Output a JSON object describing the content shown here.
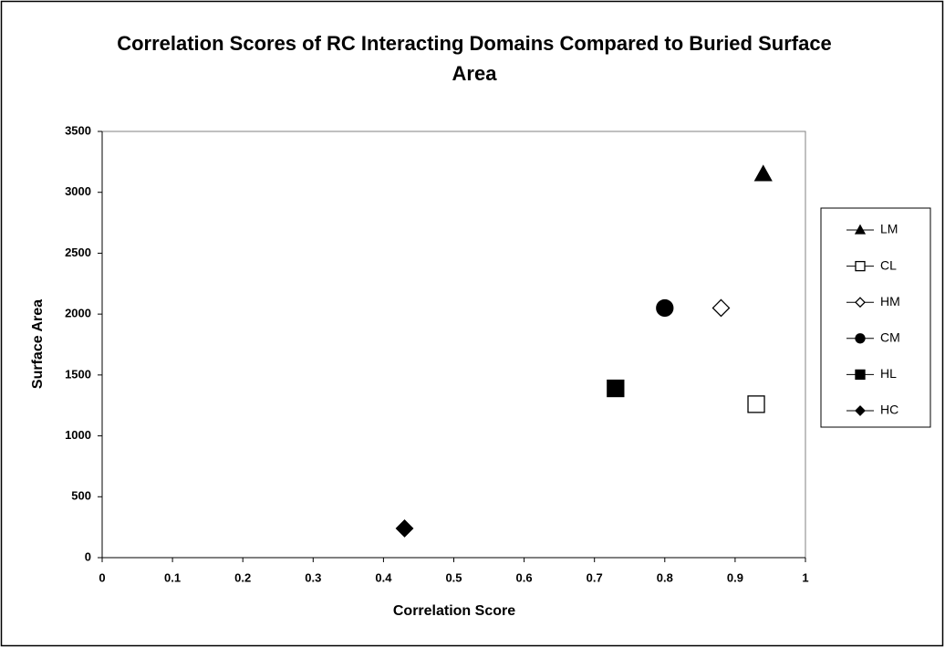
{
  "chart_data": {
    "type": "scatter",
    "title": "Correlation Scores of RC Interacting Domains Compared to Buried Surface Area",
    "x_label": "Correlation Score",
    "y_label": "Surface Area",
    "xlim": [
      0,
      1
    ],
    "xticks": [
      0,
      0.1,
      0.2,
      0.3,
      0.4,
      0.5,
      0.6,
      0.7,
      0.8,
      0.9,
      1
    ],
    "ylim": [
      0,
      3500
    ],
    "yticks": [
      0,
      500,
      1000,
      1500,
      2000,
      2500,
      3000,
      3500
    ],
    "grid": false,
    "legend": "right",
    "series": [
      {
        "name": "LM",
        "color": "#000000",
        "marker": "triangle",
        "filled": true,
        "x": [
          0.94
        ],
        "y": [
          3150
        ]
      },
      {
        "name": "CL",
        "color": "#000000",
        "marker": "square",
        "filled": false,
        "x": [
          0.93
        ],
        "y": [
          1260
        ]
      },
      {
        "name": "HM",
        "color": "#000000",
        "marker": "diamond",
        "filled": false,
        "x": [
          0.88
        ],
        "y": [
          2050
        ]
      },
      {
        "name": "CM",
        "color": "#000000",
        "marker": "circle",
        "filled": true,
        "x": [
          0.8
        ],
        "y": [
          2050
        ]
      },
      {
        "name": "HL",
        "color": "#000000",
        "marker": "square",
        "filled": true,
        "x": [
          0.73
        ],
        "y": [
          1390
        ]
      },
      {
        "name": "HC",
        "color": "#000000",
        "marker": "diamond",
        "filled": true,
        "x": [
          0.43
        ],
        "y": [
          240
        ]
      }
    ]
  }
}
